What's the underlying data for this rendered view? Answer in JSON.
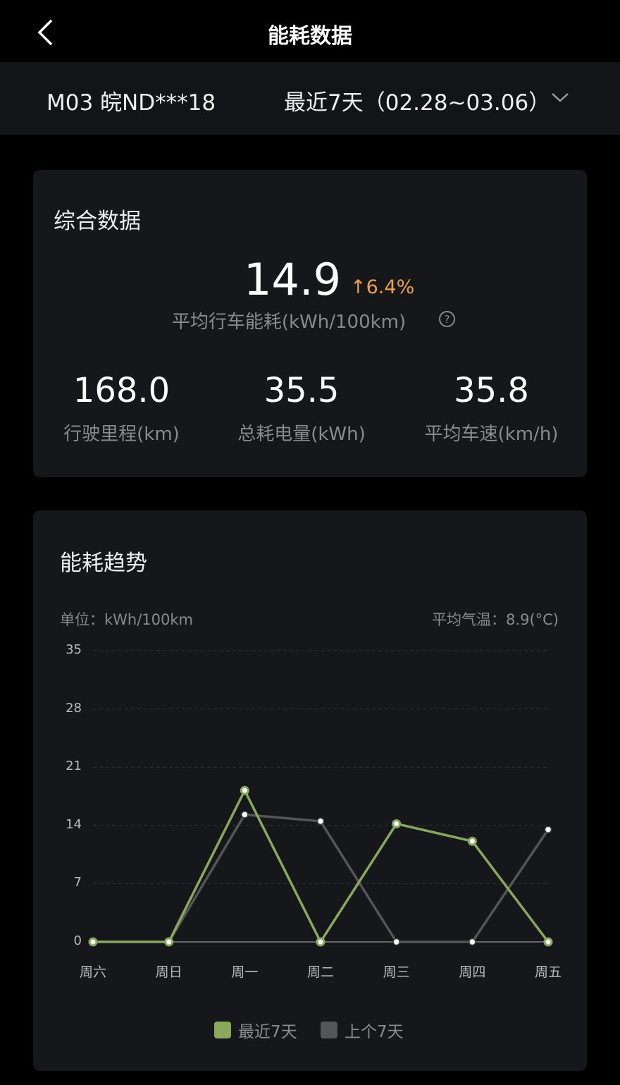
{
  "header": {
    "title": "能耗数据"
  },
  "filter": {
    "vehicle": "M03 皖ND***18",
    "range": "最近7天（02.28~03.06）"
  },
  "summary": {
    "title": "综合数据",
    "main_value": "14.9",
    "change": "6.4%",
    "change_direction": "up",
    "change_color": "#f0a03a",
    "main_label": "平均行车能耗(kWh/100km)",
    "stats": [
      {
        "value": "168.0",
        "label": "行驶里程(km)"
      },
      {
        "value": "35.5",
        "label": "总耗电量(kWh)"
      },
      {
        "value": "35.8",
        "label": "平均车速(km/h)"
      }
    ]
  },
  "trend": {
    "title": "能耗趋势",
    "unit": "单位：kWh/100km",
    "temperature": "平均气温：8.9(°C)"
  },
  "chart_data": {
    "type": "line",
    "categories": [
      "周六",
      "周日",
      "周一",
      "周二",
      "周三",
      "周四",
      "周五"
    ],
    "yticks": [
      "0",
      "7",
      "14",
      "21",
      "28",
      "35"
    ],
    "ylim": [
      0,
      35
    ],
    "grid": true,
    "legend_placement": "bottom",
    "series": [
      {
        "name": "最近7天",
        "color": "#8aa85a",
        "values": [
          0,
          0,
          18.2,
          0,
          14.2,
          12.1,
          0
        ]
      },
      {
        "name": "上个7天",
        "color": "#555558",
        "values": [
          0,
          0,
          15.3,
          14.5,
          0,
          0,
          13.5
        ]
      }
    ]
  }
}
